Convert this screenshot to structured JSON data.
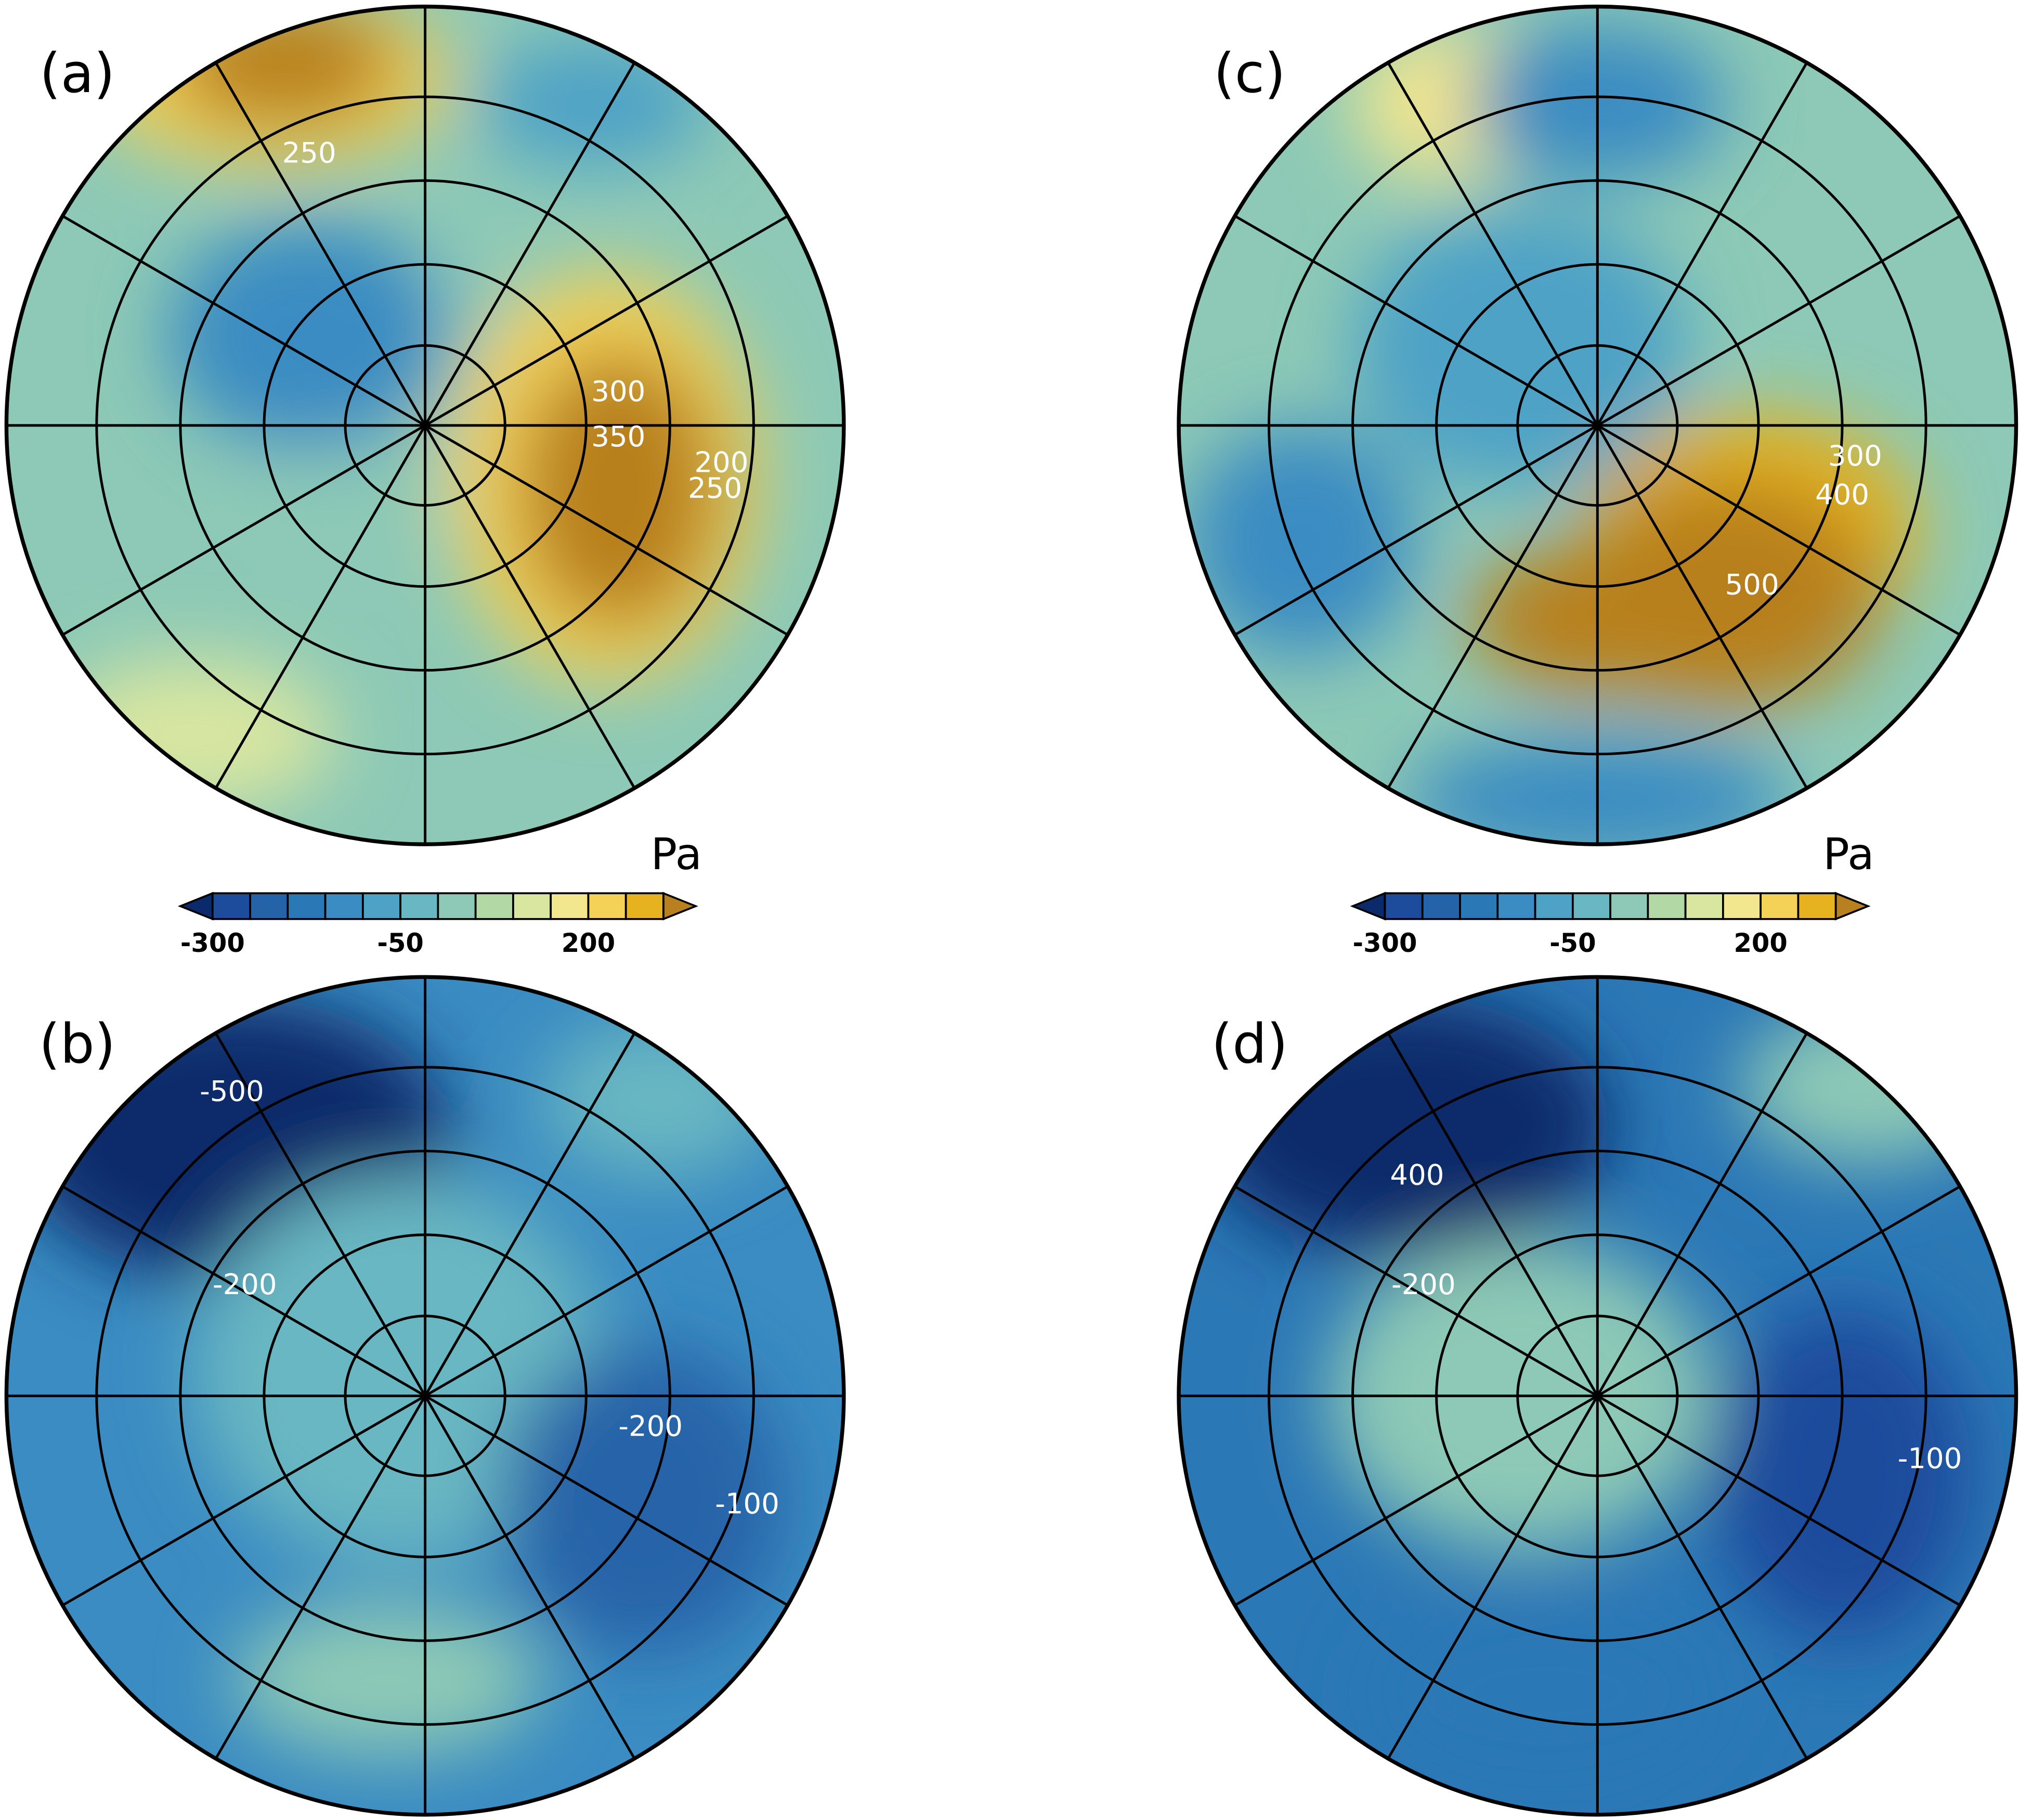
{
  "panels": [
    {
      "label": "(a)",
      "contour_labels": [
        250,
        300,
        350,
        250,
        200
      ]
    },
    {
      "label": "(b)",
      "contour_labels": [
        -500,
        -200,
        -200,
        -100
      ]
    },
    {
      "label": "(c)",
      "contour_labels": [
        300,
        400,
        500
      ]
    },
    {
      "label": "(d)",
      "contour_labels": [
        400,
        -200,
        -100
      ]
    }
  ],
  "colorbar": {
    "unit": "Pa",
    "levels": [
      -300,
      -250,
      -200,
      -150,
      -100,
      -50,
      0,
      50,
      100,
      150,
      200,
      250,
      300
    ],
    "ticks": [
      -300,
      -50,
      200
    ],
    "colors": [
      "#0b2a6b",
      "#1d4c9c",
      "#2563a8",
      "#2b78b6",
      "#3a8cc2",
      "#4ea2c6",
      "#69b7c2",
      "#8dc9b6",
      "#b2d8a6",
      "#d8e6a0",
      "#f2e68e",
      "#f4d257",
      "#e6b21e",
      "#b8801e"
    ]
  }
}
